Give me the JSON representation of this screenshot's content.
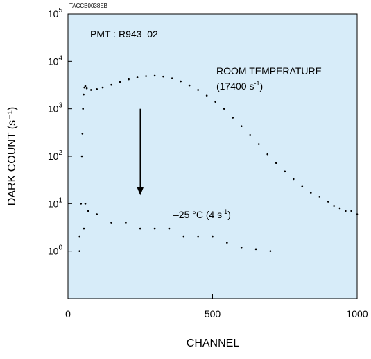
{
  "chart_data": {
    "type": "scatter",
    "figure_code": "TACCB0038EB",
    "title": "",
    "xlabel": "CHANNEL",
    "ylabel": "DARK COUNT (s⁻¹)",
    "xlim": [
      0,
      1000
    ],
    "ylim": [
      0.1,
      100000
    ],
    "yscale": "log",
    "grid": false,
    "background_color": "#d7ecf9",
    "frame_color": "#000000",
    "point_color": "#000000",
    "x_ticks": [
      {
        "value": 0,
        "label": "0"
      },
      {
        "value": 500,
        "label": "500"
      },
      {
        "value": 1000,
        "label": "1000"
      }
    ],
    "y_ticks": [
      {
        "value": 1,
        "base": "10",
        "exp": "0"
      },
      {
        "value": 10,
        "base": "10",
        "exp": "1"
      },
      {
        "value": 100,
        "base": "10",
        "exp": "2"
      },
      {
        "value": 1000,
        "base": "10",
        "exp": "3"
      },
      {
        "value": 10000,
        "base": "10",
        "exp": "4"
      },
      {
        "value": 100000,
        "base": "10",
        "exp": "5"
      }
    ],
    "annotations": {
      "pmt": "PMT : R943–02",
      "room_line1": "ROOM TEMPERATURE",
      "room_line2_pre": "(17400 s",
      "room_line2_sup": "-1",
      "room_line2_post": ")",
      "cold_pre": "–25 °C (4 s",
      "cold_sup": "-1",
      "cold_post": ")"
    },
    "arrow": {
      "x": 250,
      "y_from": 1000,
      "y_to": 15
    },
    "series": [
      {
        "points": [
          [
            40,
            2
          ],
          [
            45,
            10
          ],
          [
            48,
            100
          ],
          [
            50,
            300
          ],
          [
            52,
            1000
          ],
          [
            54,
            2000
          ],
          [
            57,
            2800
          ],
          [
            60,
            3000
          ],
          [
            65,
            2700
          ],
          [
            80,
            2500
          ],
          [
            100,
            2600
          ],
          [
            120,
            2800
          ],
          [
            150,
            3200
          ],
          [
            180,
            3700
          ],
          [
            210,
            4200
          ],
          [
            240,
            4600
          ],
          [
            270,
            4900
          ],
          [
            300,
            5000
          ],
          [
            330,
            4800
          ],
          [
            360,
            4400
          ],
          [
            390,
            3800
          ],
          [
            420,
            3100
          ],
          [
            450,
            2500
          ],
          [
            480,
            1900
          ],
          [
            510,
            1400
          ],
          [
            540,
            1000
          ],
          [
            570,
            650
          ],
          [
            600,
            430
          ],
          [
            630,
            280
          ],
          [
            660,
            180
          ],
          [
            690,
            110
          ],
          [
            720,
            72
          ],
          [
            750,
            48
          ],
          [
            780,
            33
          ],
          [
            810,
            23
          ],
          [
            840,
            17
          ],
          [
            870,
            14
          ],
          [
            900,
            11
          ],
          [
            920,
            9
          ],
          [
            940,
            8
          ],
          [
            960,
            7
          ],
          [
            980,
            7
          ],
          [
            1000,
            6
          ]
        ]
      },
      {
        "points": [
          [
            40,
            1
          ],
          [
            55,
            3
          ],
          [
            60,
            10
          ],
          [
            70,
            7
          ],
          [
            100,
            6
          ],
          [
            150,
            4
          ],
          [
            200,
            4
          ],
          [
            250,
            3
          ],
          [
            300,
            3
          ],
          [
            350,
            3
          ],
          [
            400,
            2
          ],
          [
            450,
            2
          ],
          [
            500,
            2
          ],
          [
            550,
            1.5
          ],
          [
            600,
            1.2
          ],
          [
            650,
            1.1
          ],
          [
            700,
            1
          ]
        ]
      }
    ]
  }
}
